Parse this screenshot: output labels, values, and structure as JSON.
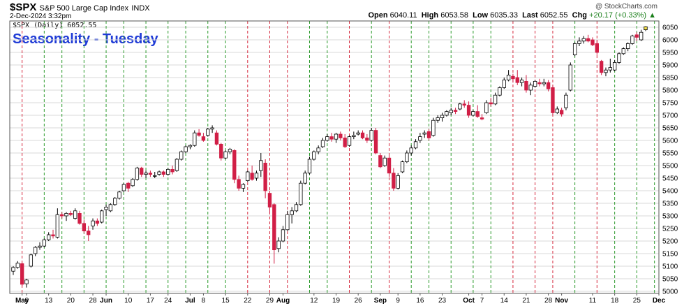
{
  "header": {
    "symbol": "$SPX",
    "name": "S&P 500 Large Cap Index",
    "exchange": "INDX",
    "date": "2-Dec-2024 3:32pm",
    "credit": "@ StockCharts.com",
    "open_label": "Open",
    "open": "6040.11",
    "high_label": "High",
    "high": "6053.58",
    "low_label": "Low",
    "low": "6035.33",
    "last_label": "Last",
    "last": "6052.55",
    "chg_label": "Chg",
    "chg": "+20.17 (+0.33%)",
    "legend": "$SPX (Daily) 6052.55"
  },
  "chart_data": {
    "type": "candlestick",
    "title": "Seasonality - Tuesday",
    "ylim": [
      5000,
      6050
    ],
    "yticks": [
      5000,
      5050,
      5100,
      5150,
      5200,
      5250,
      5300,
      5350,
      5400,
      5450,
      5500,
      5550,
      5600,
      5650,
      5700,
      5750,
      5800,
      5850,
      5900,
      5950,
      6000,
      6050
    ],
    "xticks": [
      {
        "label": "May",
        "i": 2,
        "bold": true
      },
      {
        "label": "6",
        "i": 3
      },
      {
        "label": "13",
        "i": 8
      },
      {
        "label": "20",
        "i": 13
      },
      {
        "label": "28",
        "i": 18
      },
      {
        "label": "Jun",
        "i": 21,
        "bold": true
      },
      {
        "label": "10",
        "i": 26
      },
      {
        "label": "17",
        "i": 31
      },
      {
        "label": "24",
        "i": 35
      },
      {
        "label": "Jul",
        "i": 40,
        "bold": true
      },
      {
        "label": "8",
        "i": 43
      },
      {
        "label": "15",
        "i": 48
      },
      {
        "label": "22",
        "i": 53
      },
      {
        "label": "29",
        "i": 58
      },
      {
        "label": "Aug",
        "i": 61,
        "bold": true
      },
      {
        "label": "12",
        "i": 68
      },
      {
        "label": "19",
        "i": 73
      },
      {
        "label": "26",
        "i": 78
      },
      {
        "label": "Sep",
        "i": 83,
        "bold": true
      },
      {
        "label": "9",
        "i": 87
      },
      {
        "label": "16",
        "i": 92
      },
      {
        "label": "23",
        "i": 97
      },
      {
        "label": "Oct",
        "i": 103,
        "bold": true
      },
      {
        "label": "7",
        "i": 106
      },
      {
        "label": "14",
        "i": 111
      },
      {
        "label": "21",
        "i": 116
      },
      {
        "label": "28",
        "i": 121
      },
      {
        "label": "Nov",
        "i": 124,
        "bold": true
      },
      {
        "label": "11",
        "i": 131
      },
      {
        "label": "18",
        "i": 136
      },
      {
        "label": "25",
        "i": 141
      },
      {
        "label": "Dec",
        "i": 146,
        "bold": true
      }
    ],
    "vlines": [
      {
        "i": 2,
        "color": "red"
      },
      {
        "i": 7,
        "color": "green"
      },
      {
        "i": 11,
        "color": "green"
      },
      {
        "i": 16,
        "color": "green"
      },
      {
        "i": 21,
        "color": "green"
      },
      {
        "i": 25,
        "color": "green"
      },
      {
        "i": 30,
        "color": "green"
      },
      {
        "i": 35,
        "color": "green"
      },
      {
        "i": 39,
        "color": "green"
      },
      {
        "i": 44,
        "color": "green"
      },
      {
        "i": 48,
        "color": "green"
      },
      {
        "i": 53,
        "color": "red"
      },
      {
        "i": 58,
        "color": "red"
      },
      {
        "i": 62,
        "color": "red"
      },
      {
        "i": 67,
        "color": "green"
      },
      {
        "i": 71,
        "color": "green"
      },
      {
        "i": 76,
        "color": "red"
      },
      {
        "i": 81,
        "color": "green"
      },
      {
        "i": 85,
        "color": "red"
      },
      {
        "i": 90,
        "color": "green"
      },
      {
        "i": 94,
        "color": "green"
      },
      {
        "i": 99,
        "color": "green"
      },
      {
        "i": 104,
        "color": "green"
      },
      {
        "i": 108,
        "color": "green"
      },
      {
        "i": 113,
        "color": "red"
      },
      {
        "i": 118,
        "color": "red"
      },
      {
        "i": 122,
        "color": "red"
      },
      {
        "i": 127,
        "color": "green"
      },
      {
        "i": 132,
        "color": "red"
      },
      {
        "i": 136,
        "color": "green"
      },
      {
        "i": 141,
        "color": "green"
      },
      {
        "i": 145,
        "color": "green"
      }
    ],
    "ohlc": [
      [
        5080,
        5100,
        5065,
        5095
      ],
      [
        5095,
        5120,
        5090,
        5112
      ],
      [
        5110,
        5112,
        5020,
        5028
      ],
      [
        5030,
        5050,
        5015,
        5045
      ],
      [
        5100,
        5150,
        5095,
        5145
      ],
      [
        5150,
        5180,
        5140,
        5175
      ],
      [
        5175,
        5195,
        5165,
        5180
      ],
      [
        5180,
        5210,
        5175,
        5205
      ],
      [
        5205,
        5235,
        5200,
        5225
      ],
      [
        5225,
        5245,
        5210,
        5220
      ],
      [
        5215,
        5330,
        5210,
        5305
      ],
      [
        5305,
        5315,
        5290,
        5300
      ],
      [
        5300,
        5315,
        5280,
        5310
      ],
      [
        5310,
        5320,
        5300,
        5305
      ],
      [
        5290,
        5330,
        5285,
        5320
      ],
      [
        5310,
        5320,
        5265,
        5270
      ],
      [
        5270,
        5285,
        5230,
        5240
      ],
      [
        5240,
        5260,
        5200,
        5225
      ],
      [
        5260,
        5290,
        5245,
        5280
      ],
      [
        5280,
        5290,
        5260,
        5270
      ],
      [
        5275,
        5325,
        5270,
        5320
      ],
      [
        5325,
        5345,
        5300,
        5335
      ],
      [
        5320,
        5350,
        5315,
        5345
      ],
      [
        5345,
        5375,
        5340,
        5370
      ],
      [
        5370,
        5400,
        5365,
        5395
      ],
      [
        5400,
        5430,
        5395,
        5425
      ],
      [
        5430,
        5435,
        5395,
        5410
      ],
      [
        5420,
        5450,
        5415,
        5445
      ],
      [
        5445,
        5495,
        5440,
        5490
      ],
      [
        5490,
        5495,
        5455,
        5465
      ],
      [
        5465,
        5480,
        5450,
        5470
      ],
      [
        5470,
        5480,
        5455,
        5465
      ],
      [
        5460,
        5475,
        5450,
        5460
      ],
      [
        5465,
        5480,
        5460,
        5475
      ],
      [
        5475,
        5480,
        5455,
        5465
      ],
      [
        5465,
        5490,
        5460,
        5485
      ],
      [
        5485,
        5500,
        5465,
        5475
      ],
      [
        5480,
        5530,
        5475,
        5525
      ],
      [
        5525,
        5560,
        5520,
        5555
      ],
      [
        5555,
        5580,
        5550,
        5575
      ],
      [
        5575,
        5585,
        5565,
        5580
      ],
      [
        5580,
        5640,
        5575,
        5630
      ],
      [
        5630,
        5645,
        5615,
        5620
      ],
      [
        5615,
        5630,
        5595,
        5600
      ],
      [
        5620,
        5650,
        5615,
        5645
      ],
      [
        5645,
        5660,
        5630,
        5650
      ],
      [
        5630,
        5640,
        5580,
        5585
      ],
      [
        5585,
        5590,
        5520,
        5530
      ],
      [
        5530,
        5560,
        5525,
        5555
      ],
      [
        5555,
        5570,
        5545,
        5565
      ],
      [
        5560,
        5565,
        5430,
        5445
      ],
      [
        5445,
        5460,
        5400,
        5410
      ],
      [
        5410,
        5430,
        5395,
        5425
      ],
      [
        5440,
        5480,
        5435,
        5475
      ],
      [
        5470,
        5500,
        5440,
        5445
      ],
      [
        5450,
        5480,
        5440,
        5470
      ],
      [
        5480,
        5550,
        5455,
        5520
      ],
      [
        5510,
        5525,
        5370,
        5400
      ],
      [
        5390,
        5400,
        5310,
        5335
      ],
      [
        5345,
        5350,
        5110,
        5165
      ],
      [
        5170,
        5215,
        5155,
        5200
      ],
      [
        5200,
        5260,
        5195,
        5245
      ],
      [
        5245,
        5320,
        5240,
        5305
      ],
      [
        5305,
        5335,
        5270,
        5320
      ],
      [
        5320,
        5355,
        5315,
        5345
      ],
      [
        5345,
        5440,
        5340,
        5430
      ],
      [
        5430,
        5480,
        5425,
        5470
      ],
      [
        5470,
        5535,
        5465,
        5525
      ],
      [
        5525,
        5560,
        5520,
        5555
      ],
      [
        5555,
        5580,
        5545,
        5570
      ],
      [
        5575,
        5610,
        5570,
        5600
      ],
      [
        5600,
        5625,
        5595,
        5615
      ],
      [
        5615,
        5630,
        5595,
        5605
      ],
      [
        5605,
        5630,
        5590,
        5625
      ],
      [
        5625,
        5635,
        5600,
        5610
      ],
      [
        5610,
        5625,
        5570,
        5575
      ],
      [
        5580,
        5620,
        5575,
        5615
      ],
      [
        5615,
        5635,
        5605,
        5620
      ],
      [
        5625,
        5640,
        5620,
        5630
      ],
      [
        5630,
        5640,
        5605,
        5610
      ],
      [
        5610,
        5625,
        5590,
        5600
      ],
      [
        5600,
        5650,
        5595,
        5640
      ],
      [
        5640,
        5650,
        5545,
        5550
      ],
      [
        5540,
        5550,
        5490,
        5495
      ],
      [
        5500,
        5540,
        5495,
        5530
      ],
      [
        5530,
        5540,
        5455,
        5470
      ],
      [
        5470,
        5490,
        5400,
        5410
      ],
      [
        5410,
        5470,
        5405,
        5460
      ],
      [
        5475,
        5520,
        5470,
        5515
      ],
      [
        5515,
        5560,
        5510,
        5550
      ],
      [
        5550,
        5580,
        5540,
        5570
      ],
      [
        5570,
        5605,
        5565,
        5595
      ],
      [
        5600,
        5630,
        5590,
        5615
      ],
      [
        5625,
        5640,
        5610,
        5630
      ],
      [
        5635,
        5645,
        5600,
        5610
      ],
      [
        5620,
        5690,
        5615,
        5680
      ],
      [
        5680,
        5700,
        5670,
        5690
      ],
      [
        5690,
        5710,
        5675,
        5700
      ],
      [
        5700,
        5720,
        5695,
        5715
      ],
      [
        5710,
        5730,
        5700,
        5720
      ],
      [
        5720,
        5730,
        5705,
        5715
      ],
      [
        5725,
        5750,
        5720,
        5745
      ],
      [
        5745,
        5760,
        5730,
        5740
      ],
      [
        5740,
        5755,
        5690,
        5700
      ],
      [
        5700,
        5720,
        5695,
        5715
      ],
      [
        5715,
        5740,
        5690,
        5695
      ],
      [
        5690,
        5705,
        5680,
        5685
      ],
      [
        5710,
        5760,
        5705,
        5750
      ],
      [
        5750,
        5770,
        5735,
        5745
      ],
      [
        5745,
        5790,
        5740,
        5780
      ],
      [
        5780,
        5815,
        5775,
        5810
      ],
      [
        5810,
        5850,
        5805,
        5840
      ],
      [
        5840,
        5880,
        5835,
        5860
      ],
      [
        5855,
        5865,
        5830,
        5845
      ],
      [
        5850,
        5880,
        5820,
        5830
      ],
      [
        5830,
        5850,
        5815,
        5840
      ],
      [
        5835,
        5860,
        5790,
        5800
      ],
      [
        5800,
        5830,
        5780,
        5820
      ],
      [
        5815,
        5840,
        5810,
        5835
      ],
      [
        5830,
        5845,
        5815,
        5825
      ],
      [
        5825,
        5845,
        5815,
        5830
      ],
      [
        5830,
        5840,
        5795,
        5805
      ],
      [
        5810,
        5820,
        5700,
        5710
      ],
      [
        5710,
        5735,
        5705,
        5725
      ],
      [
        5720,
        5730,
        5695,
        5705
      ],
      [
        5730,
        5790,
        5720,
        5780
      ],
      [
        5800,
        5910,
        5795,
        5900
      ],
      [
        5940,
        5990,
        5935,
        5985
      ],
      [
        5985,
        6010,
        5975,
        5995
      ],
      [
        5995,
        6015,
        5985,
        6005
      ],
      [
        6005,
        6020,
        5990,
        5995
      ],
      [
        6000,
        6010,
        5975,
        5980
      ],
      [
        5985,
        6000,
        5940,
        5950
      ],
      [
        5915,
        5920,
        5860,
        5870
      ],
      [
        5870,
        5890,
        5855,
        5880
      ],
      [
        5880,
        5925,
        5870,
        5890
      ],
      [
        5880,
        5920,
        5875,
        5910
      ],
      [
        5910,
        5950,
        5905,
        5945
      ],
      [
        5945,
        5970,
        5940,
        5965
      ],
      [
        5965,
        5990,
        5955,
        5985
      ],
      [
        5985,
        6020,
        5980,
        6015
      ],
      [
        6020,
        6030,
        5995,
        6010
      ],
      [
        6000,
        6040,
        5995,
        6030
      ],
      [
        6040,
        6054,
        6035,
        6052
      ]
    ]
  }
}
